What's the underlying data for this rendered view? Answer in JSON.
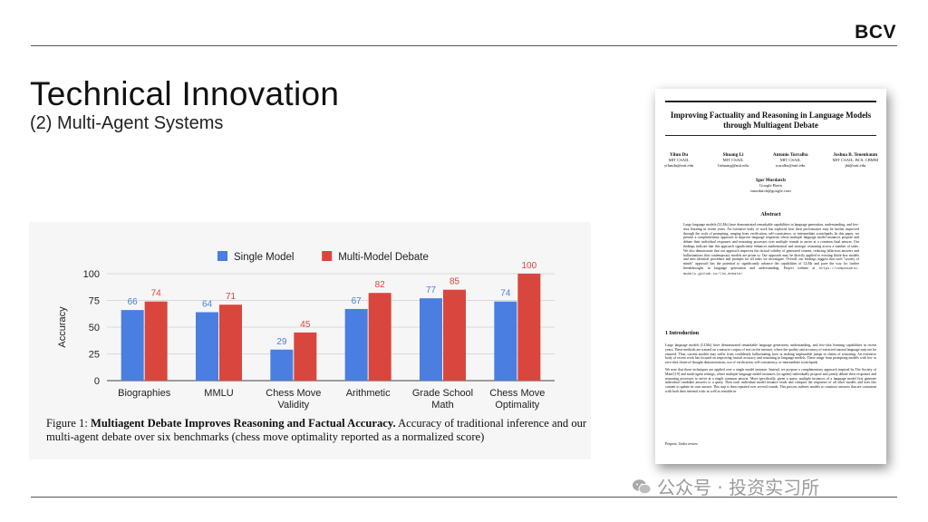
{
  "brand": "BCV",
  "title": "Technical Innovation",
  "subtitle": "(2) Multi-Agent Systems",
  "chart_data": {
    "type": "bar",
    "categories": [
      "Biographies",
      "MMLU",
      "Chess Move Validity",
      "Arithmetic",
      "Grade School Math",
      "Chess Move Optimality"
    ],
    "series": [
      {
        "name": "Single Model",
        "values": [
          66,
          64,
          29,
          67,
          77,
          74
        ],
        "color": "#4a7ee0"
      },
      {
        "name": "Multi-Model Debate",
        "values": [
          74,
          71,
          45,
          82,
          85,
          100
        ],
        "color": "#d9463d"
      }
    ],
    "ylabel": "Accuracy",
    "xlabel": "",
    "ylim": [
      0,
      100
    ],
    "yticks": [
      0,
      25,
      50,
      75,
      100
    ],
    "grid": true,
    "legend": "top-center",
    "data_labels": true
  },
  "figure_caption": {
    "prefix": "Figure 1: ",
    "bold": "Multiagent Debate Improves Reasoning and Factual Accuracy.",
    "rest": " Accuracy of traditional inference and our multi-agent debate over six benchmarks (chess move optimality reported as a normalized score)"
  },
  "paper": {
    "title": "Improving Factuality and Reasoning in Language Models through Multiagent Debate",
    "authors": [
      {
        "name": "Yilun Du",
        "affiliation": "MIT CSAIL",
        "email": "yilundu@mit.edu"
      },
      {
        "name": "Shuang Li",
        "affiliation": "MIT CSAIL",
        "email": "lishuang@mit.edu"
      },
      {
        "name": "Antonio Torralba",
        "affiliation": "MIT CSAIL",
        "email": "torralba@mit.edu"
      },
      {
        "name": "Joshua B. Tenenbaum",
        "affiliation": "MIT CSAIL, BCS, CBMM",
        "email": "jbt@mit.edu"
      }
    ],
    "author_last": {
      "name": "Igor Mordatch",
      "affiliation": "Google Brain",
      "email": "imordatch@google.com"
    },
    "abstract_heading": "Abstract",
    "abstract": "Large language models (LLMs) have demonstrated remarkable capabilities in language generation, understanding, and few-shot learning in recent years. An extensive body of work has explored how their performance may be further improved through the tools of prompting, ranging from verification, self-consistency, or intermediate scratchpads. In this paper, we present a complementary approach to improve language responses where multiple language model instances propose and debate their individual responses and reasoning processes over multiple rounds to arrive at a common final answer. Our findings indicate that this approach significantly enhances mathematical and strategic reasoning across a number of tasks. We also demonstrate that our approach improves the factual validity of generated content, reducing fallacious answers and hallucinations that contemporary models are prone to. Our approach may be directly applied to existing black-box models and uses identical procedure and prompts for all tasks we investigate. Overall, our findings suggest that such \"society of minds\" approach has the potential to significantly advance the capabilities of LLMs and pave the way for further breakthroughs in language generation and understanding. Project website at",
    "abstract_link": "https://composable-models.github.io/llm_debate/",
    "section_heading": "1   Introduction",
    "intro_p1": "Large language models (LLMs) have demonstrated remarkable language generation, understanding, and few-shot learning capabilities in recent years. These methods are trained on a massive corpus of text on the internet, where the quality and accuracy of extracted natural language may not be ensured. Thus, current models may suffer from confidently hallucinating facts or making implausible jumps in chains of reasoning. An extensive body of recent work has focused on improving factual accuracy and reasoning in language models. These range from prompting models with few or zero-shot chain-of-thought demonstrations, use of verification, self-consistency, or intermediate scratchpads.",
    "intro_p2": "We note that these techniques are applied over a single model instance. Instead, we propose a complementary approach inspired by The Society of Mind [19] and multi-agent settings, where multiple language model instances (or agents) individually propose and jointly debate their responses and reasoning processes to arrive at a single common answer. More specifically, given a query, multiple instances of a language model first generate individual candidate answers to a query. Then each individual model instance reads and critiques the responses of all other models and uses this content to update its own answer. This step is then repeated over several rounds. This process induces models to construct answers that are consistent with both their internal critic as well as sensible in",
    "footnote": "Preprint. Under review."
  },
  "watermark": "公众号 · 投资实习所"
}
